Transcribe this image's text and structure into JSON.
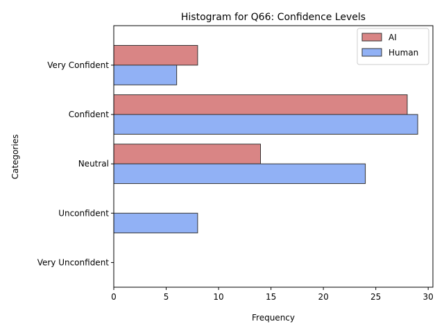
{
  "chart_data": {
    "type": "bar",
    "orientation": "horizontal",
    "title": "Histogram for Q66: Confidence Levels",
    "xlabel": "Frequency",
    "ylabel": "Categories",
    "categories": [
      "Very Confident",
      "Confident",
      "Neutral",
      "Unconfident",
      "Very Unconfident"
    ],
    "series": [
      {
        "name": "AI",
        "values": [
          8,
          28,
          14,
          0,
          0
        ],
        "color": "#d98585"
      },
      {
        "name": "Human",
        "values": [
          6,
          29,
          24,
          8,
          0
        ],
        "color": "#91b1f5"
      }
    ],
    "xlim": [
      0,
      30.45
    ],
    "xticks": [
      0,
      5,
      10,
      15,
      20,
      25,
      30
    ],
    "grid": false,
    "legend_position": "top-right"
  }
}
